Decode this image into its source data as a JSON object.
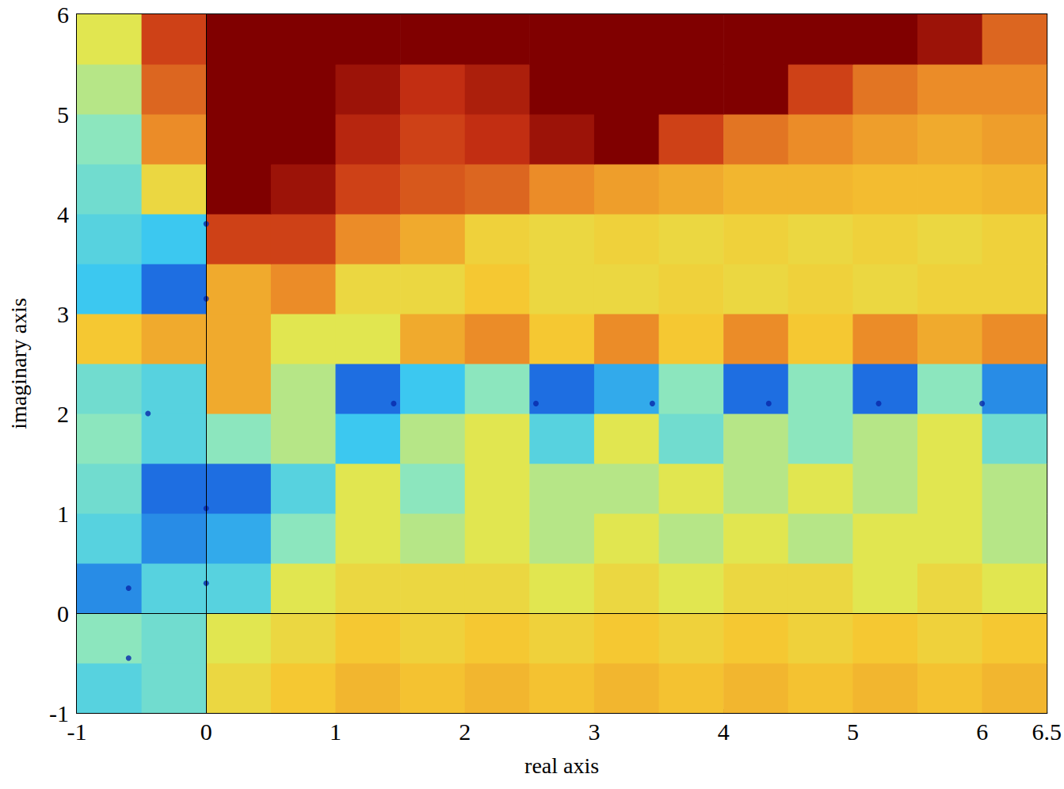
{
  "chart_data": {
    "type": "heatmap",
    "xlabel": "real axis",
    "ylabel": "imaginary axis",
    "xlim": [
      -1,
      6.5
    ],
    "ylim": [
      -1,
      6
    ],
    "xticks": [
      -1,
      0,
      1,
      2,
      3,
      4,
      5,
      6
    ],
    "yticks": [
      -1,
      0,
      1,
      2,
      3,
      4,
      5,
      6
    ],
    "x": [
      -0.75,
      -0.25,
      0.25,
      0.75,
      1.25,
      1.75,
      2.25,
      2.75,
      3.25,
      3.75,
      4.25,
      4.75,
      5.25,
      5.75,
      6.25
    ],
    "y": [
      -0.75,
      -0.25,
      0.25,
      0.75,
      1.25,
      1.75,
      2.25,
      2.75,
      3.25,
      3.75,
      4.25,
      4.75,
      5.25,
      5.75
    ],
    "values": [
      [
        0.35,
        0.4,
        0.6,
        0.65,
        0.68,
        0.66,
        0.68,
        0.66,
        0.68,
        0.66,
        0.68,
        0.66,
        0.68,
        0.66,
        0.68
      ],
      [
        0.45,
        0.4,
        0.55,
        0.6,
        0.65,
        0.62,
        0.65,
        0.62,
        0.65,
        0.62,
        0.65,
        0.62,
        0.65,
        0.62,
        0.65
      ],
      [
        0.2,
        0.35,
        0.35,
        0.55,
        0.6,
        0.6,
        0.6,
        0.55,
        0.6,
        0.55,
        0.6,
        0.6,
        0.55,
        0.6,
        0.55
      ],
      [
        0.35,
        0.2,
        0.25,
        0.45,
        0.55,
        0.5,
        0.55,
        0.5,
        0.55,
        0.5,
        0.55,
        0.5,
        0.55,
        0.55,
        0.5
      ],
      [
        0.4,
        0.15,
        0.15,
        0.35,
        0.55,
        0.45,
        0.55,
        0.5,
        0.5,
        0.55,
        0.5,
        0.55,
        0.5,
        0.55,
        0.5
      ],
      [
        0.45,
        0.35,
        0.45,
        0.5,
        0.3,
        0.5,
        0.55,
        0.35,
        0.55,
        0.4,
        0.5,
        0.45,
        0.5,
        0.55,
        0.4
      ],
      [
        0.4,
        0.35,
        0.7,
        0.5,
        0.15,
        0.3,
        0.45,
        0.15,
        0.25,
        0.45,
        0.15,
        0.45,
        0.15,
        0.45,
        0.2
      ],
      [
        0.65,
        0.7,
        0.7,
        0.55,
        0.55,
        0.7,
        0.75,
        0.65,
        0.75,
        0.65,
        0.75,
        0.65,
        0.75,
        0.7,
        0.75
      ],
      [
        0.3,
        0.15,
        0.7,
        0.75,
        0.6,
        0.6,
        0.65,
        0.6,
        0.6,
        0.62,
        0.6,
        0.62,
        0.6,
        0.62,
        0.62
      ],
      [
        0.35,
        0.3,
        0.85,
        0.85,
        0.75,
        0.7,
        0.62,
        0.6,
        0.62,
        0.6,
        0.62,
        0.6,
        0.62,
        0.6,
        0.62
      ],
      [
        0.4,
        0.6,
        1,
        0.95,
        0.85,
        0.82,
        0.8,
        0.75,
        0.72,
        0.7,
        0.68,
        0.68,
        0.67,
        0.67,
        0.68
      ],
      [
        0.45,
        0.75,
        1,
        1,
        0.9,
        0.85,
        0.88,
        0.95,
        1,
        0.85,
        0.78,
        0.75,
        0.72,
        0.7,
        0.72
      ],
      [
        0.5,
        0.8,
        1,
        1,
        0.95,
        0.88,
        0.92,
        1,
        1,
        1,
        1,
        0.85,
        0.78,
        0.75,
        0.75
      ],
      [
        0.55,
        0.85,
        1,
        1,
        1,
        1,
        1,
        1,
        1,
        1,
        1,
        1,
        1,
        0.95,
        0.8
      ]
    ],
    "color_range": [
      0,
      1
    ],
    "minima": {
      "x": [
        0,
        0,
        0,
        0,
        1.45,
        2.55,
        3.45,
        4.35,
        5.2,
        6.0,
        -0.6,
        -0.45,
        -0.6
      ],
      "y": [
        1.05,
        3.15,
        0.3,
        3.9,
        2.1,
        2.1,
        2.1,
        2.1,
        2.1,
        2.1,
        0.25,
        2.0,
        -0.45
      ]
    },
    "reference_lines": {
      "x": [
        0
      ],
      "y": [
        0
      ]
    },
    "grid": false
  }
}
